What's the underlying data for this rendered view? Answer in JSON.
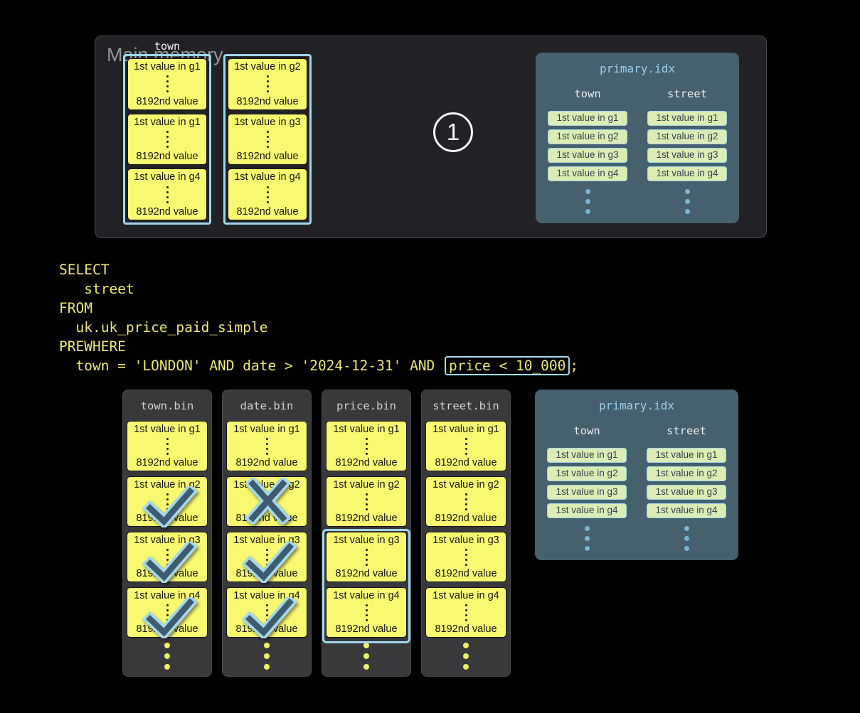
{
  "colors": {
    "background": "#010101",
    "accent_blue": "#a4d9ec",
    "block_yellow": "#f9f971",
    "index_panel_slate": "#46606e",
    "pill_green": "#dcecb4",
    "sql_yellow": "#edea6c"
  },
  "main_memory": {
    "panel_label": "Main memory",
    "column_label": "town",
    "step_badge": "1",
    "columns": [
      {
        "blocks": [
          {
            "top": "1st value in g1",
            "bottom": "8192nd value"
          },
          {
            "top": "1st value in g1",
            "bottom": "8192nd value"
          },
          {
            "top": "1st value in g4",
            "bottom": "8192nd value"
          }
        ]
      },
      {
        "blocks": [
          {
            "top": "1st value in g2",
            "bottom": "8192nd value"
          },
          {
            "top": "1st value in g3",
            "bottom": "8192nd value"
          },
          {
            "top": "1st value in g4",
            "bottom": "8192nd value"
          }
        ]
      }
    ]
  },
  "primary_index": {
    "title": "primary.idx",
    "columns": [
      {
        "header": "town",
        "entries": [
          "1st value in g1",
          "1st value in g2",
          "1st value in g3",
          "1st value in g4"
        ]
      },
      {
        "header": "street",
        "entries": [
          "1st value in g1",
          "1st value in g2",
          "1st value in g3",
          "1st value in g4"
        ]
      }
    ]
  },
  "sql": {
    "lines": [
      "SELECT",
      "   street",
      "FROM",
      "  uk.uk_price_paid_simple",
      "PREWHERE"
    ],
    "last_line": {
      "prefix": "  town = 'LONDON' AND date > '2024-12-31' AND ",
      "highlight": "price < 10_000",
      "suffix": ";"
    }
  },
  "bin_columns": [
    {
      "title": "town.bin",
      "blocks": [
        {
          "top": "1st value in g1",
          "bottom": "8192nd value",
          "mark": "none"
        },
        {
          "top": "1st value in g2",
          "bottom": "8192nd value",
          "mark": "check"
        },
        {
          "top": "1st value in g3",
          "bottom": "8192nd value",
          "mark": "check"
        },
        {
          "top": "1st value in g4",
          "bottom": "8192nd value",
          "mark": "check"
        }
      ]
    },
    {
      "title": "date.bin",
      "blocks": [
        {
          "top": "1st value in g1",
          "bottom": "8192nd value",
          "mark": "none"
        },
        {
          "top": "1st value in g2",
          "bottom": "8192nd value",
          "mark": "cross"
        },
        {
          "top": "1st value in g3",
          "bottom": "8192nd value",
          "mark": "check"
        },
        {
          "top": "1st value in g4",
          "bottom": "8192nd value",
          "mark": "check"
        }
      ]
    },
    {
      "title": "price.bin",
      "selected_granules": "g3-g4",
      "blocks": [
        {
          "top": "1st value in g1",
          "bottom": "8192nd value",
          "mark": "none"
        },
        {
          "top": "1st value in g2",
          "bottom": "8192nd value",
          "mark": "none"
        },
        {
          "top": "1st value in g3",
          "bottom": "8192nd value",
          "mark": "none"
        },
        {
          "top": "1st value in g4",
          "bottom": "8192nd value",
          "mark": "none"
        }
      ]
    },
    {
      "title": "street.bin",
      "blocks": [
        {
          "top": "1st value in g1",
          "bottom": "8192nd value",
          "mark": "none"
        },
        {
          "top": "1st value in g2",
          "bottom": "8192nd value",
          "mark": "none"
        },
        {
          "top": "1st value in g3",
          "bottom": "8192nd value",
          "mark": "none"
        },
        {
          "top": "1st value in g4",
          "bottom": "8192nd value",
          "mark": "none"
        }
      ]
    }
  ]
}
